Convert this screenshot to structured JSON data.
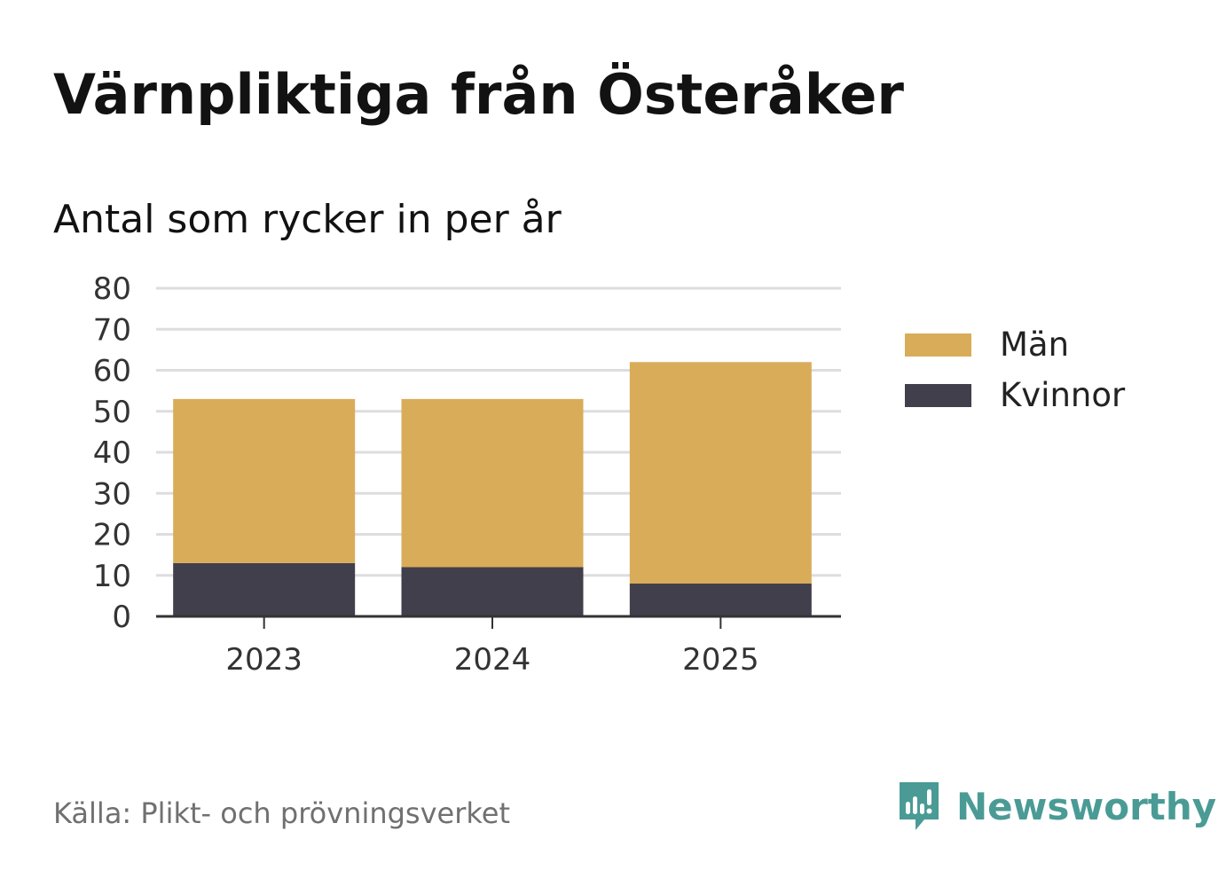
{
  "title": "Värnpliktiga från Österåker",
  "subtitle": "Antal som rycker in per år",
  "source": "Källa: Plikt- och prövningsverket",
  "brand": "Newsworthy",
  "colors": {
    "men": "#d9ac5a",
    "women": "#423f4c",
    "grid": "#dddddd",
    "axis": "#333333",
    "brand": "#4a9b95"
  },
  "chart_data": {
    "type": "bar",
    "stacked": true,
    "categories": [
      "2023",
      "2024",
      "2025"
    ],
    "series": [
      {
        "name": "Kvinnor",
        "values": [
          13,
          12,
          8
        ]
      },
      {
        "name": "Män",
        "values": [
          40,
          41,
          54
        ]
      }
    ],
    "yticks": [
      "0",
      "10",
      "20",
      "30",
      "40",
      "50",
      "60",
      "70",
      "80"
    ],
    "ylim": [
      0,
      80
    ],
    "xlabel": "",
    "ylabel": "",
    "grid": true,
    "legend_position": "right"
  },
  "legend": [
    {
      "label": "Män",
      "color": "#d9ac5a"
    },
    {
      "label": "Kvinnor",
      "color": "#423f4c"
    }
  ]
}
